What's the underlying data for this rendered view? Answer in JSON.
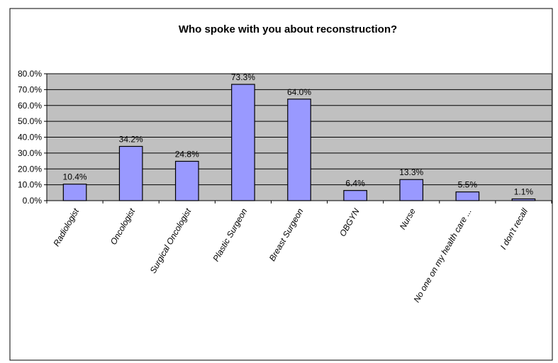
{
  "chart_data": {
    "type": "bar",
    "title": "Who spoke with you about reconstruction?",
    "xlabel": "",
    "ylabel": "",
    "categories": [
      "Radiologist",
      "Oncologist",
      "Surgical Oncologist",
      "Plastic Surgeon",
      "Breast Surgeon",
      "OBGYN",
      "Nurse",
      "No one on my health care ...",
      "I don't recall"
    ],
    "values": [
      10.4,
      34.2,
      24.8,
      73.3,
      64.0,
      6.4,
      13.3,
      5.5,
      1.1
    ],
    "data_labels": [
      "10.4%",
      "34.2%",
      "24.8%",
      "73.3%",
      "64.0%",
      "6.4%",
      "13.3%",
      "5.5%",
      "1.1%"
    ],
    "ylim": [
      0,
      80
    ],
    "yticks": [
      0,
      10,
      20,
      30,
      40,
      50,
      60,
      70,
      80
    ],
    "ytick_labels": [
      "0.0%",
      "10.0%",
      "20.0%",
      "30.0%",
      "40.0%",
      "50.0%",
      "60.0%",
      "70.0%",
      "80.0%"
    ],
    "grid": true,
    "legend": "none",
    "colors": {
      "bar": "#9999ff",
      "plot_background": "#c0c0c0"
    }
  }
}
